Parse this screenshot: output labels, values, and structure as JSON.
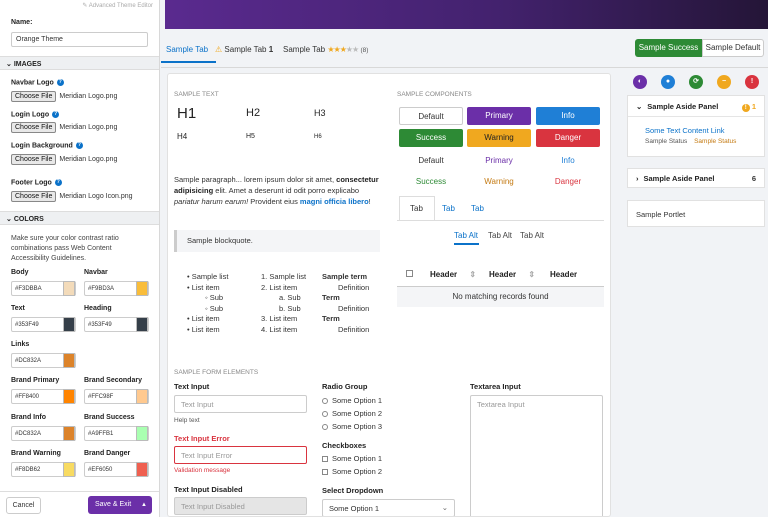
{
  "editor": {
    "advanced_link": "Advanced Theme Editor",
    "name_label": "Name:",
    "name_value": "Orange Theme",
    "images_title": "IMAGES",
    "images": [
      {
        "label": "Navbar Logo",
        "button": "Choose File",
        "file": "Meridian Logo.png"
      },
      {
        "label": "Login Logo",
        "button": "Choose File",
        "file": "Meridian Logo.png"
      },
      {
        "label": "Login Background",
        "button": "Choose File",
        "file": "Meridian Logo.png"
      },
      {
        "label": "Footer Logo",
        "button": "Choose File",
        "file": "Meridian Logo Icon.png"
      }
    ],
    "colors_title": "COLORS",
    "colors_desc": "Make sure your color contrast ratio combinations pass Web Content Accessibility Guidelines.",
    "colors": [
      {
        "label": "Body",
        "value": "#F3DBBA",
        "swatch": "#F3DBBA"
      },
      {
        "label": "Navbar",
        "value": "#F9BD3A",
        "swatch": "#F9BD3A"
      },
      {
        "label": "Text",
        "value": "#353F49",
        "swatch": "#353F49"
      },
      {
        "label": "Heading",
        "value": "#353F49",
        "swatch": "#353F49"
      },
      {
        "label": "Links",
        "value": "#DC832A",
        "swatch": "#DC832A"
      },
      {
        "label": "Brand Primary",
        "value": "#FF8400",
        "swatch": "#FF8400"
      },
      {
        "label": "Brand Secondary",
        "value": "#FFC98F",
        "swatch": "#FFC98F"
      },
      {
        "label": "Brand Info",
        "value": "#DC832A",
        "swatch": "#DC832A"
      },
      {
        "label": "Brand Success",
        "value": "#A9FFB1",
        "swatch": "#A9FFB1"
      },
      {
        "label": "Brand Warning",
        "value": "#F8DB62",
        "swatch": "#F8DB62"
      },
      {
        "label": "Brand Danger",
        "value": "#EF6050",
        "swatch": "#EF6050"
      }
    ],
    "cancel": "Cancel",
    "save": "Save & Exit"
  },
  "tabs": {
    "t1": "Sample Tab",
    "t2": "Sample Tab",
    "t2_badge": "1",
    "t3": "Sample Tab",
    "t3_count": "(8)",
    "rating": 3
  },
  "top_buttons": {
    "success": "Sample Success",
    "default": "Sample Default"
  },
  "sample_text": {
    "title": "SAMPLE TEXT",
    "h1": "H1",
    "h2": "H2",
    "h3": "H3",
    "h4": "H4",
    "h5": "H5",
    "h6": "H6",
    "para_1": "Sample paragraph... lorem ipsum dolor sit amet, ",
    "para_b1": "consectetur adipisicing",
    "para_2": " elit. Amet a deserunt id odit porro explicabo ",
    "para_i": "pariatur harum earum!",
    "para_3": " Provident eius ",
    "para_link": "magni officia libero",
    "para_4": "!",
    "blockquote": "Sample blockquote.",
    "ul": [
      "Sample list",
      "List item",
      "Sub",
      "Sub",
      "List item",
      "List item"
    ],
    "ol": [
      "Sample list",
      "List item",
      "Sub",
      "Sub",
      "List item",
      "List item"
    ],
    "ol_nums": [
      "1.",
      "2.",
      "a.",
      "b.",
      "3.",
      "4."
    ],
    "dl": [
      {
        "t": "Sample term",
        "d": "Definition"
      },
      {
        "t": "Term",
        "d": "Definition"
      },
      {
        "t": "Term",
        "d": "Definition"
      }
    ]
  },
  "components": {
    "title": "SAMPLE COMPONENTS",
    "buttons": [
      {
        "label": "Default",
        "bg": "#ffffff",
        "fg": "#333333"
      },
      {
        "label": "Primary",
        "bg": "#6b2fa8",
        "fg": "#ffffff"
      },
      {
        "label": "Info",
        "bg": "#1f7fd6",
        "fg": "#ffffff"
      },
      {
        "label": "Success",
        "bg": "#2d8a35",
        "fg": "#ffffff"
      },
      {
        "label": "Warning",
        "bg": "#f0a81f",
        "fg": "#222222"
      },
      {
        "label": "Danger",
        "bg": "#d9343f",
        "fg": "#ffffff"
      }
    ],
    "links": [
      {
        "label": "Default",
        "fg": "#333333"
      },
      {
        "label": "Primary",
        "fg": "#6b2fa8"
      },
      {
        "label": "Info",
        "fg": "#1f7fd6"
      },
      {
        "label": "Success",
        "fg": "#2d8a35"
      },
      {
        "label": "Warning",
        "fg": "#c47a12"
      },
      {
        "label": "Danger",
        "fg": "#d9343f"
      }
    ],
    "tabs": [
      "Tab",
      "Tab",
      "Tab"
    ],
    "alt_tabs": [
      "Tab Alt",
      "Tab Alt",
      "Tab Alt"
    ],
    "table_headers": [
      "Header",
      "Header",
      "Header"
    ],
    "table_empty": "No matching records found"
  },
  "form": {
    "title": "SAMPLE FORM ELEMENTS",
    "text_input_label": "Text Input",
    "text_input_placeholder": "Text Input",
    "help_text": "Help text",
    "error_label": "Text Input Error",
    "error_placeholder": "Text Input Error",
    "validation": "Validation message",
    "disabled_label": "Text Input Disabled",
    "disabled_placeholder": "Text Input Disabled",
    "radio_label": "Radio Group",
    "radios": [
      "Some Option 1",
      "Some Option 2",
      "Some Option 3"
    ],
    "check_label": "Checkboxes",
    "checks": [
      "Some Option 1",
      "Some Option 2"
    ],
    "select_label": "Select Dropdown",
    "select_value": "Some Option 1",
    "textarea_label": "Textarea Input",
    "textarea_placeholder": "Textarea Input"
  },
  "aside": {
    "panel1_title": "Sample Aside Panel",
    "panel1_badge": "1",
    "panel1_link": "Some Text Content Link",
    "panel1_status": "Sample Status",
    "panel1_status2": "Sample Status",
    "panel2_title": "Sample Aside Panel",
    "panel2_badge": "6",
    "portlet": "Sample Portlet",
    "icon_colors": [
      "#6b2fa8",
      "#1f7fd6",
      "#2d8a35",
      "#f0a81f",
      "#d9343f"
    ]
  }
}
